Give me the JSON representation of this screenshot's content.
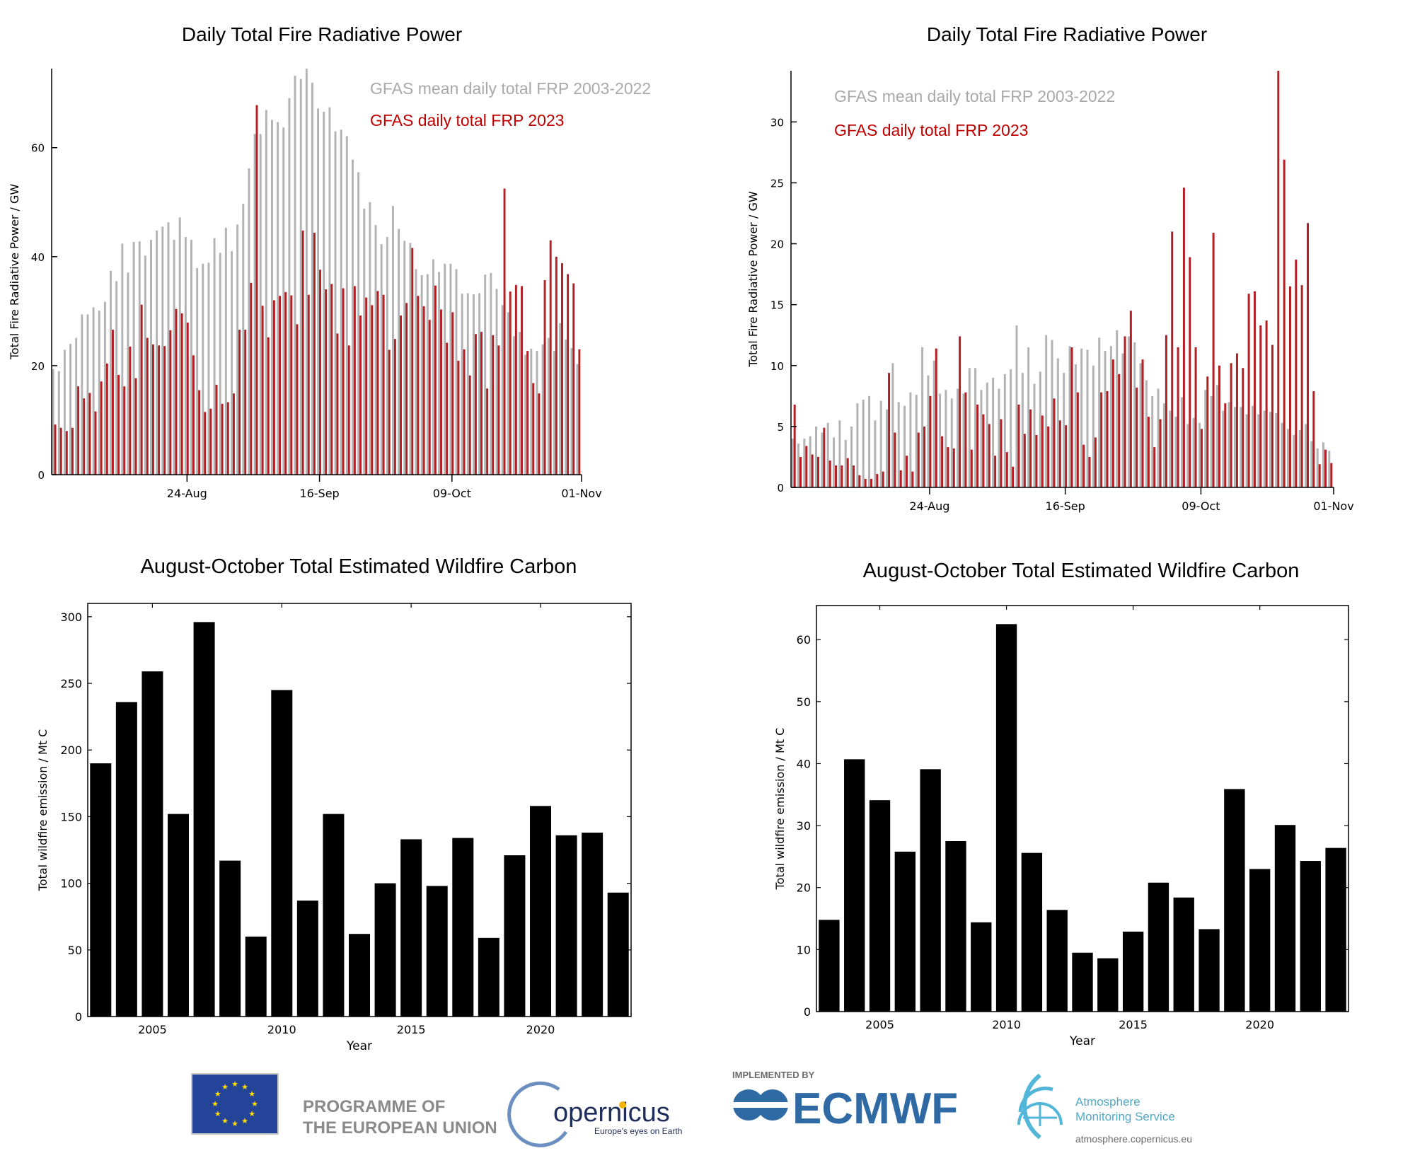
{
  "colors": {
    "grey_series": "#b3b3b3",
    "red_series": "#b41f24",
    "legend_grey": "#a9a9a9",
    "legend_red": "#c00000",
    "bar_black": "#000000",
    "eu_blue": "#24449a",
    "eu_star": "#ffdd00",
    "ecmwf_blue": "#2f6aa5",
    "ams_cyan": "#52b6d8",
    "copernicus_navy": "#1e2d5a"
  },
  "chart_data": [
    {
      "id": "frp-left",
      "type": "bar",
      "title": "Daily Total Fire Radiative Power",
      "xlabel": "",
      "ylabel": "Total Fire Radiative Power / GW",
      "ylim": [
        0,
        74.5
      ],
      "yticks": [
        0,
        20,
        40,
        60
      ],
      "x_start": "01-Aug",
      "n_days": 92,
      "xtick_labels": [
        {
          "label": "24-Aug",
          "day_index": 23.5
        },
        {
          "label": "16-Sep",
          "day_index": 46.5
        },
        {
          "label": "09-Oct",
          "day_index": 69.5
        },
        {
          "label": "01-Nov",
          "day_index": 92
        }
      ],
      "legend_placement": "top-right",
      "series": [
        {
          "name": "GFAS mean daily total FRP 2003-2022",
          "color_key": "grey_series",
          "values": [
            19.4,
            19.0,
            22.9,
            24.0,
            25.1,
            29.4,
            29.4,
            30.7,
            30.1,
            31.7,
            37.4,
            35.5,
            42.4,
            37.1,
            42.7,
            42.8,
            40.2,
            43.1,
            44.8,
            45.5,
            46.3,
            43.1,
            47.2,
            43.6,
            43.1,
            37.9,
            38.7,
            38.9,
            43.4,
            40.7,
            45.3,
            41.0,
            45.9,
            49.7,
            56.2,
            62.5,
            62.5,
            66.9,
            65.1,
            64.7,
            63.7,
            69.1,
            73.2,
            72.6,
            74.5,
            71.9,
            67.2,
            66.6,
            67.4,
            63.0,
            63.3,
            62.1,
            57.8,
            55.5,
            48.8,
            50.0,
            45.8,
            42.3,
            43.6,
            49.3,
            45.1,
            42.9,
            42.5,
            37.7,
            36.6,
            36.8,
            39.5,
            37.2,
            38.7,
            38.7,
            37.7,
            33.2,
            33.3,
            33.1,
            33.3,
            36.7,
            37.0,
            34.1,
            31.1,
            29.8,
            25.4,
            26.2,
            22.0,
            23.1,
            22.7,
            23.9,
            25.1,
            22.7,
            27.8,
            24.8,
            23.2,
            20.3
          ]
        },
        {
          "name": "GFAS daily total FRP 2023",
          "color_key": "red_series",
          "values": [
            9.2,
            8.6,
            8.0,
            8.6,
            16.2,
            14.0,
            15.0,
            11.6,
            17.1,
            20.4,
            26.6,
            18.3,
            16.2,
            23.5,
            17.7,
            31.2,
            25.1,
            23.9,
            23.7,
            23.6,
            26.5,
            30.4,
            29.6,
            27.9,
            21.9,
            15.5,
            11.5,
            12.1,
            16.5,
            13.0,
            13.3,
            14.9,
            26.6,
            26.6,
            35.2,
            67.8,
            31.0,
            25.2,
            32.0,
            32.8,
            33.5,
            32.9,
            27.6,
            44.8,
            33.0,
            44.4,
            37.6,
            34.0,
            35.0,
            25.9,
            34.2,
            23.7,
            34.6,
            29.2,
            32.5,
            31.1,
            33.7,
            33.0,
            22.9,
            24.9,
            29.2,
            31.5,
            41.6,
            32.8,
            30.9,
            28.4,
            34.7,
            30.3,
            24.2,
            29.8,
            20.9,
            23.0,
            18.2,
            25.8,
            26.2,
            15.8,
            25.6,
            23.7,
            52.5,
            33.6,
            34.8,
            34.6,
            22.7,
            16.8,
            14.9,
            35.7,
            43.0,
            40.0,
            38.8,
            36.8,
            35.1,
            23.0
          ]
        }
      ]
    },
    {
      "id": "frp-right",
      "type": "bar",
      "title": "Daily Total Fire Radiative Power",
      "xlabel": "",
      "ylabel": "Total Fire Radiative Power / GW",
      "ylim": [
        0,
        34.2
      ],
      "yticks": [
        0,
        5,
        10,
        15,
        20,
        25,
        30
      ],
      "x_start": "01-Aug",
      "n_days": 92,
      "xtick_labels": [
        {
          "label": "24-Aug",
          "day_index": 23.5
        },
        {
          "label": "16-Sep",
          "day_index": 46.5
        },
        {
          "label": "09-Oct",
          "day_index": 69.5
        },
        {
          "label": "01-Nov",
          "day_index": 92
        }
      ],
      "legend_placement": "top-left",
      "series": [
        {
          "name": "GFAS mean daily total FRP 2003-2022",
          "color_key": "grey_series",
          "values": [
            4.0,
            3.6,
            4.0,
            4.2,
            5.0,
            4.5,
            5.3,
            4.1,
            5.5,
            3.9,
            5.0,
            6.9,
            7.2,
            7.5,
            5.5,
            7.1,
            6.4,
            10.2,
            7.0,
            6.7,
            7.8,
            7.6,
            11.5,
            9.2,
            10.4,
            7.7,
            8.0,
            7.3,
            8.1,
            7.7,
            9.8,
            9.8,
            8.0,
            8.6,
            9.0,
            8.1,
            9.3,
            9.7,
            13.3,
            9.4,
            11.5,
            8.5,
            9.5,
            12.5,
            12.1,
            10.6,
            9.4,
            11.6,
            10.1,
            11.4,
            11.3,
            10.0,
            12.3,
            11.2,
            11.6,
            12.9,
            11.0,
            12.4,
            11.9,
            10.2,
            8.8,
            7.5,
            8.1,
            6.9,
            6.3,
            5.8,
            7.4,
            5.2,
            5.7,
            5.3,
            8.0,
            7.5,
            8.4,
            6.3,
            7.0,
            6.6,
            6.6,
            6.0,
            6.7,
            6.0,
            6.3,
            6.2,
            6.1,
            5.3,
            4.8,
            4.3,
            4.7,
            5.2,
            3.8,
            3.2,
            3.7,
            3.0
          ]
        },
        {
          "name": "GFAS daily total FRP 2023",
          "color_key": "red_series",
          "values": [
            6.8,
            2.5,
            3.4,
            2.7,
            2.5,
            4.9,
            2.2,
            1.8,
            1.8,
            2.4,
            1.8,
            1.0,
            0.7,
            0.7,
            1.1,
            1.3,
            9.4,
            4.5,
            1.4,
            2.6,
            1.3,
            4.5,
            5.0,
            7.5,
            11.4,
            4.2,
            3.3,
            3.2,
            12.4,
            7.8,
            3.1,
            6.8,
            6.0,
            5.2,
            2.6,
            5.6,
            2.9,
            1.7,
            6.8,
            4.4,
            6.4,
            4.3,
            5.9,
            5.0,
            7.3,
            5.5,
            5.1,
            11.5,
            7.8,
            3.5,
            2.5,
            4.1,
            7.8,
            7.9,
            10.5,
            9.3,
            12.4,
            14.5,
            8.2,
            10.5,
            5.8,
            3.3,
            5.6,
            12.5,
            21.0,
            11.5,
            24.6,
            18.9,
            11.5,
            4.8,
            9.1,
            20.9,
            10.0,
            6.9,
            10.2,
            11.0,
            9.8,
            15.9,
            16.1,
            13.3,
            13.7,
            11.7,
            34.2,
            26.9,
            16.5,
            18.7,
            16.6,
            21.7,
            7.9,
            1.9,
            3.1,
            2.0
          ]
        }
      ]
    },
    {
      "id": "carbon-left",
      "type": "bar",
      "title": "August-October Total Estimated Wildfire Carbon",
      "xlabel": "Year",
      "ylabel": "Total wildfire emission / Mt C",
      "ylim": [
        0,
        310
      ],
      "yticks": [
        0,
        50,
        100,
        150,
        200,
        250,
        300
      ],
      "xticks": [
        2005,
        2010,
        2015,
        2020
      ],
      "xlim": [
        2002.5,
        2023.5
      ],
      "categories": [
        2003,
        2004,
        2005,
        2006,
        2007,
        2008,
        2009,
        2010,
        2011,
        2012,
        2013,
        2014,
        2015,
        2016,
        2017,
        2018,
        2019,
        2020,
        2021,
        2022,
        2023
      ],
      "values": [
        190,
        236,
        259,
        152,
        296,
        117,
        60,
        245,
        87,
        152,
        62,
        100,
        133,
        98,
        134,
        59,
        121,
        158,
        136,
        138,
        93
      ]
    },
    {
      "id": "carbon-right",
      "type": "bar",
      "title": "August-October Total Estimated Wildfire Carbon",
      "xlabel": "Year",
      "ylabel": "Total wildfire emission / Mt C",
      "ylim": [
        0,
        65.5
      ],
      "yticks": [
        0,
        10,
        20,
        30,
        40,
        50,
        60
      ],
      "xticks": [
        2005,
        2010,
        2015,
        2020
      ],
      "xlim": [
        2002.5,
        2023.5
      ],
      "categories": [
        2003,
        2004,
        2005,
        2006,
        2007,
        2008,
        2009,
        2010,
        2011,
        2012,
        2013,
        2014,
        2015,
        2016,
        2017,
        2018,
        2019,
        2020,
        2021,
        2022,
        2023
      ],
      "values": [
        14.8,
        40.7,
        34.1,
        25.8,
        39.1,
        27.5,
        14.4,
        62.5,
        25.6,
        16.4,
        9.5,
        8.6,
        12.9,
        20.8,
        18.4,
        13.3,
        35.9,
        23.0,
        30.1,
        24.3,
        26.4
      ]
    }
  ],
  "footer": {
    "eu_line1": "PROGRAMME OF",
    "eu_line2": "THE EUROPEAN UNION",
    "copernicus_name": "opernicus",
    "copernicus_tagline": "Europe's eyes on Earth",
    "ecmwf_caption": "IMPLEMENTED BY",
    "ecmwf_name": "ECMWF",
    "ams_line1": "Atmosphere",
    "ams_line2": "Monitoring Service",
    "ams_url": "atmosphere.copernicus.eu"
  }
}
